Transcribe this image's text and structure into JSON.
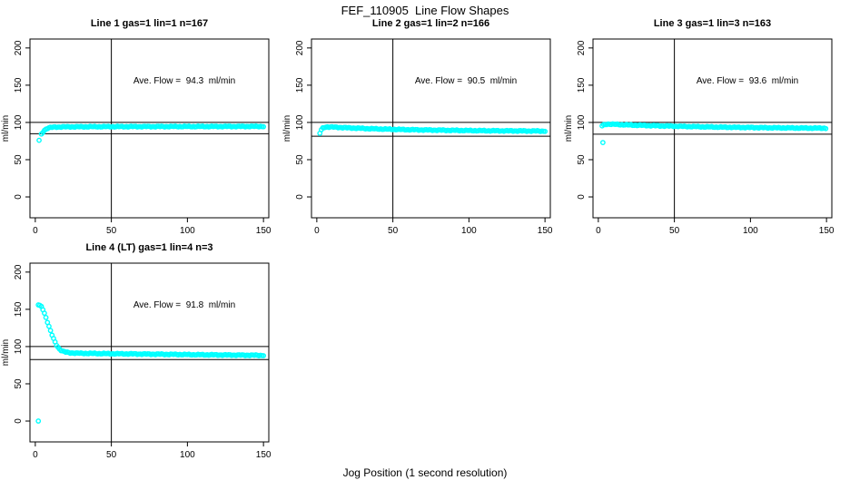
{
  "page": {
    "title": "FEF_110905  Line Flow Shapes",
    "xlabel": "Jog Position (1 second resolution)",
    "background_color": "#ffffff",
    "axis_color": "#000000",
    "point_color": "#00ffff"
  },
  "chart_data": [
    {
      "type": "scatter",
      "title": "Line 1 gas=1 lin=1 n=167",
      "annotation": "Ave. Flow =  94.3  ml/min",
      "ave_flow_ml_min": 94.3,
      "n_points": 167,
      "ylabel": "ml/min",
      "xlim": [
        -3.5,
        153.5
      ],
      "ylim": [
        -28,
        212
      ],
      "xticks": [
        0,
        50,
        100,
        150
      ],
      "yticks": [
        0,
        50,
        100,
        150,
        200
      ],
      "hlines": [
        100,
        84.9
      ],
      "vlines": [
        50
      ],
      "marker": "open-circle",
      "marker_color": "#00ffff",
      "outlier_points": [
        [
          2.5,
          76
        ]
      ],
      "profile_keypoints": [
        [
          4,
          84
        ],
        [
          5,
          87
        ],
        [
          6,
          89.5
        ],
        [
          7,
          91
        ],
        [
          8,
          92.2
        ],
        [
          10,
          93.2
        ],
        [
          13,
          93.8
        ],
        [
          20,
          94.1
        ],
        [
          40,
          94.3
        ],
        [
          80,
          94.5
        ],
        [
          120,
          94.6
        ],
        [
          150,
          94.7
        ]
      ],
      "x_step": 1
    },
    {
      "type": "scatter",
      "title": "Line 2 gas=1 lin=2 n=166",
      "annotation": "Ave. Flow =  90.5  ml/min",
      "ave_flow_ml_min": 90.5,
      "n_points": 166,
      "ylabel": "ml/min",
      "xlim": [
        -3.5,
        153.5
      ],
      "ylim": [
        -28,
        212
      ],
      "xticks": [
        0,
        50,
        100,
        150
      ],
      "yticks": [
        0,
        50,
        100,
        150,
        200
      ],
      "hlines": [
        100,
        81.5
      ],
      "vlines": [
        50
      ],
      "marker": "open-circle",
      "marker_color": "#00ffff",
      "outlier_points": [],
      "profile_keypoints": [
        [
          2,
          85.5
        ],
        [
          3,
          90
        ],
        [
          4,
          92.5
        ],
        [
          5,
          93.5
        ],
        [
          7,
          94
        ],
        [
          12,
          93.6
        ],
        [
          20,
          92.8
        ],
        [
          35,
          91.6
        ],
        [
          55,
          90.5
        ],
        [
          80,
          89.6
        ],
        [
          110,
          88.9
        ],
        [
          140,
          88.5
        ],
        [
          150,
          88.4
        ]
      ],
      "x_step": 1
    },
    {
      "type": "scatter",
      "title": "Line 3 gas=1 lin=3 n=163",
      "annotation": "Ave. Flow =  93.6  ml/min",
      "ave_flow_ml_min": 93.6,
      "n_points": 163,
      "ylabel": "ml/min",
      "xlim": [
        -3.5,
        153.5
      ],
      "ylim": [
        -28,
        212
      ],
      "xticks": [
        0,
        50,
        100,
        150
      ],
      "yticks": [
        0,
        50,
        100,
        150,
        200
      ],
      "hlines": [
        100,
        84.2
      ],
      "vlines": [
        50
      ],
      "marker": "open-circle",
      "marker_color": "#00ffff",
      "outlier_points": [
        [
          3,
          73
        ]
      ],
      "profile_keypoints": [
        [
          2.5,
          95.5
        ],
        [
          4,
          97
        ],
        [
          6,
          97.8
        ],
        [
          10,
          97.5
        ],
        [
          20,
          96.6
        ],
        [
          35,
          95.7
        ],
        [
          55,
          94.7
        ],
        [
          80,
          93.7
        ],
        [
          110,
          92.9
        ],
        [
          140,
          92.4
        ],
        [
          150,
          92.3
        ]
      ],
      "x_step": 1
    },
    {
      "type": "scatter",
      "title": "Line 4 (LT) gas=1 lin=4 n=3",
      "annotation": "Ave. Flow =  91.8  ml/min",
      "ave_flow_ml_min": 91.8,
      "n_points": 3,
      "ylabel": "ml/min",
      "xlim": [
        -3.5,
        153.5
      ],
      "ylim": [
        -28,
        212
      ],
      "xticks": [
        0,
        50,
        100,
        150
      ],
      "yticks": [
        0,
        50,
        100,
        150,
        200
      ],
      "hlines": [
        100,
        82.6
      ],
      "vlines": [
        50
      ],
      "marker": "open-circle",
      "marker_color": "#00ffff",
      "outlier_points": [
        [
          2,
          0
        ]
      ],
      "profile_keypoints": [
        [
          2,
          156
        ],
        [
          3,
          155
        ],
        [
          4,
          153.5
        ],
        [
          5,
          150
        ],
        [
          6,
          145
        ],
        [
          7,
          139
        ],
        [
          8,
          133
        ],
        [
          9,
          127
        ],
        [
          10,
          121
        ],
        [
          11,
          115.5
        ],
        [
          12,
          110.5
        ],
        [
          13,
          106
        ],
        [
          14,
          102
        ],
        [
          15,
          99
        ],
        [
          16,
          96.5
        ],
        [
          17,
          95
        ],
        [
          18,
          93.8
        ],
        [
          20,
          92.5
        ],
        [
          23,
          91.6
        ],
        [
          27,
          91.1
        ],
        [
          35,
          90.8
        ],
        [
          50,
          90.4
        ],
        [
          70,
          90
        ],
        [
          90,
          89.5
        ],
        [
          110,
          89
        ],
        [
          130,
          88.6
        ],
        [
          150,
          88.2
        ]
      ],
      "x_step": 1
    }
  ]
}
